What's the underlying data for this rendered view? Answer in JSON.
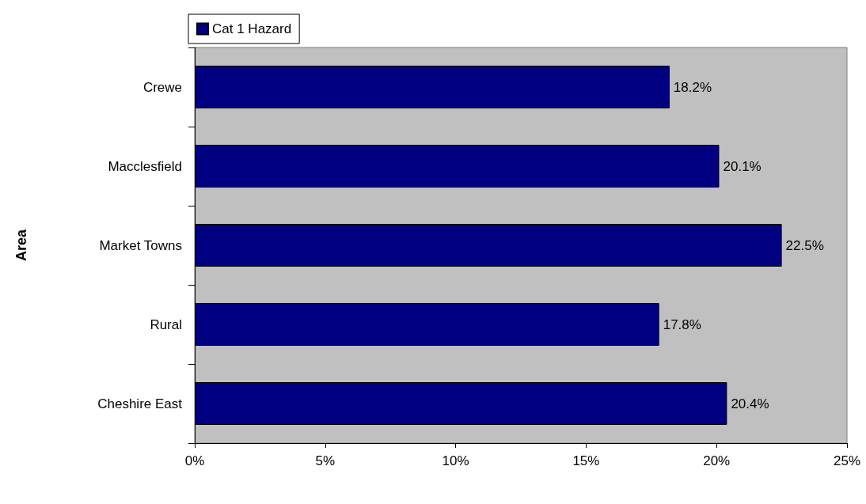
{
  "chart_data": {
    "type": "bar",
    "orientation": "horizontal",
    "ylabel": "Area",
    "categories": [
      "Crewe",
      "Macclesfield",
      "Market Towns",
      "Rural",
      "Cheshire East"
    ],
    "series": [
      {
        "name": "Cat 1 Hazard",
        "color": "#000080",
        "values": [
          18.2,
          20.1,
          22.5,
          17.8,
          20.4
        ],
        "value_labels": [
          "18.2%",
          "20.1%",
          "22.5%",
          "17.8%",
          "20.4%"
        ]
      }
    ],
    "xlim": [
      0,
      25
    ],
    "xticks": [
      {
        "value": 0,
        "label": "0%"
      },
      {
        "value": 5,
        "label": "5%"
      },
      {
        "value": 10,
        "label": "10%"
      },
      {
        "value": 15,
        "label": "15%"
      },
      {
        "value": 20,
        "label": "20%"
      },
      {
        "value": 25,
        "label": "25%"
      }
    ],
    "legend": "top",
    "grid": false
  }
}
